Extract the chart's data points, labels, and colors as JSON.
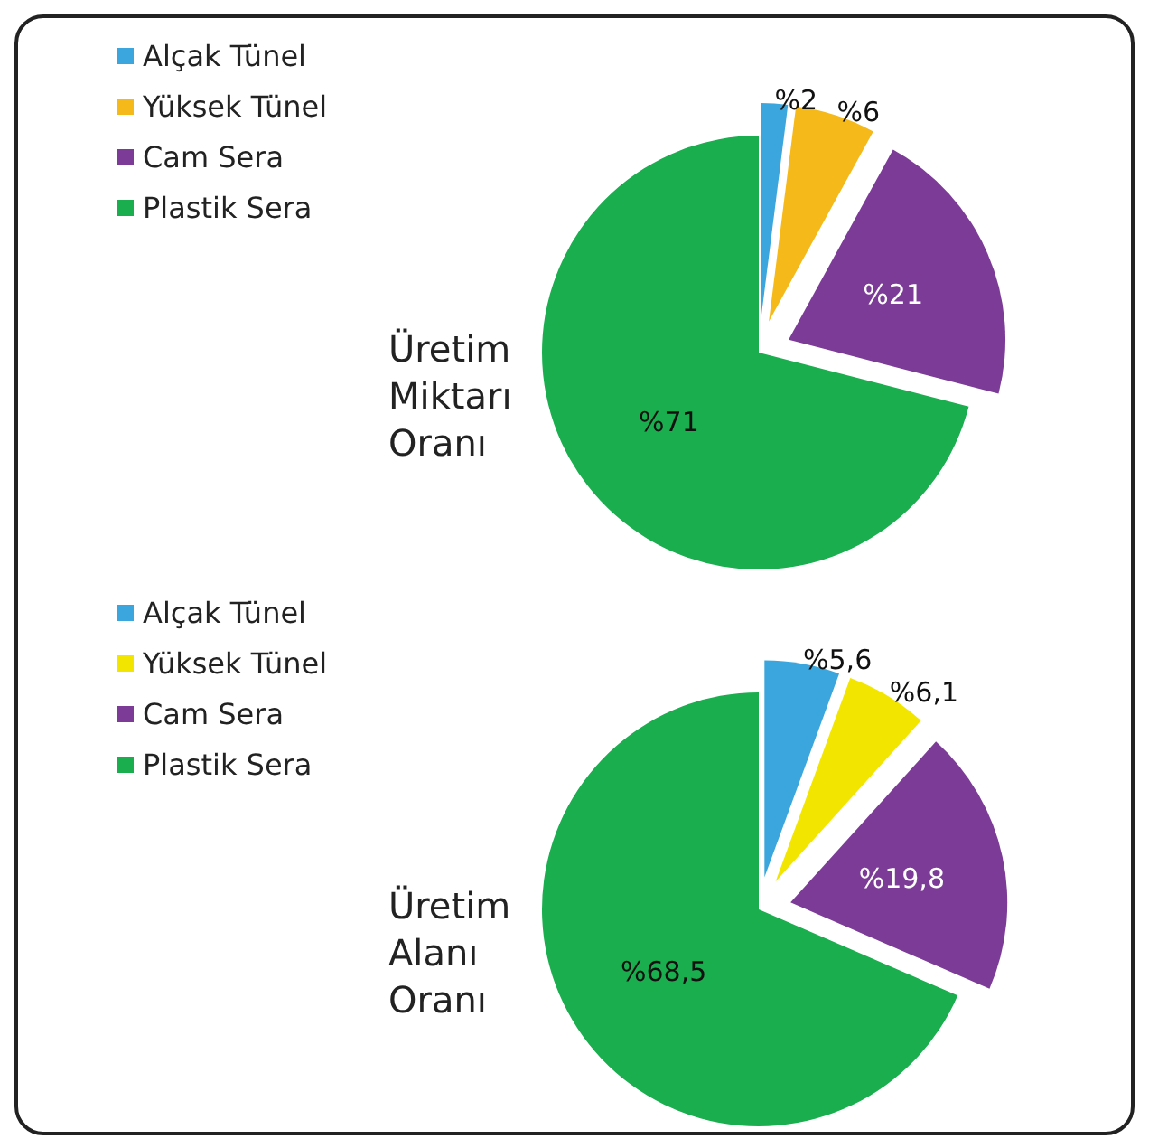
{
  "chart_data": [
    {
      "type": "pie",
      "title": "Üretim Miktarı Oranı",
      "categories": [
        "Alçak Tünel",
        "Yüksek Tünel",
        "Cam Sera",
        "Plastik Sera"
      ],
      "values": [
        2,
        6,
        21,
        71
      ],
      "colors": [
        "#3aa6dd",
        "#f5b91a",
        "#7b3b97",
        "#1aae4f"
      ],
      "value_labels": [
        "%2",
        "%6",
        "%21",
        "%71"
      ],
      "legend": "top left"
    },
    {
      "type": "pie",
      "title": "Üretim Alanı Oranı",
      "categories": [
        "Alçak Tünel",
        "Yüksek Tünel",
        "Cam Sera",
        "Plastik Sera"
      ],
      "values": [
        5.6,
        6.1,
        19.8,
        68.5
      ],
      "colors": [
        "#3aa6dd",
        "#f2e600",
        "#7b3b97",
        "#1aae4f"
      ],
      "value_labels": [
        "%5,6",
        "%6,1",
        "%19,8",
        "%68,5"
      ],
      "legend": "top left"
    }
  ]
}
